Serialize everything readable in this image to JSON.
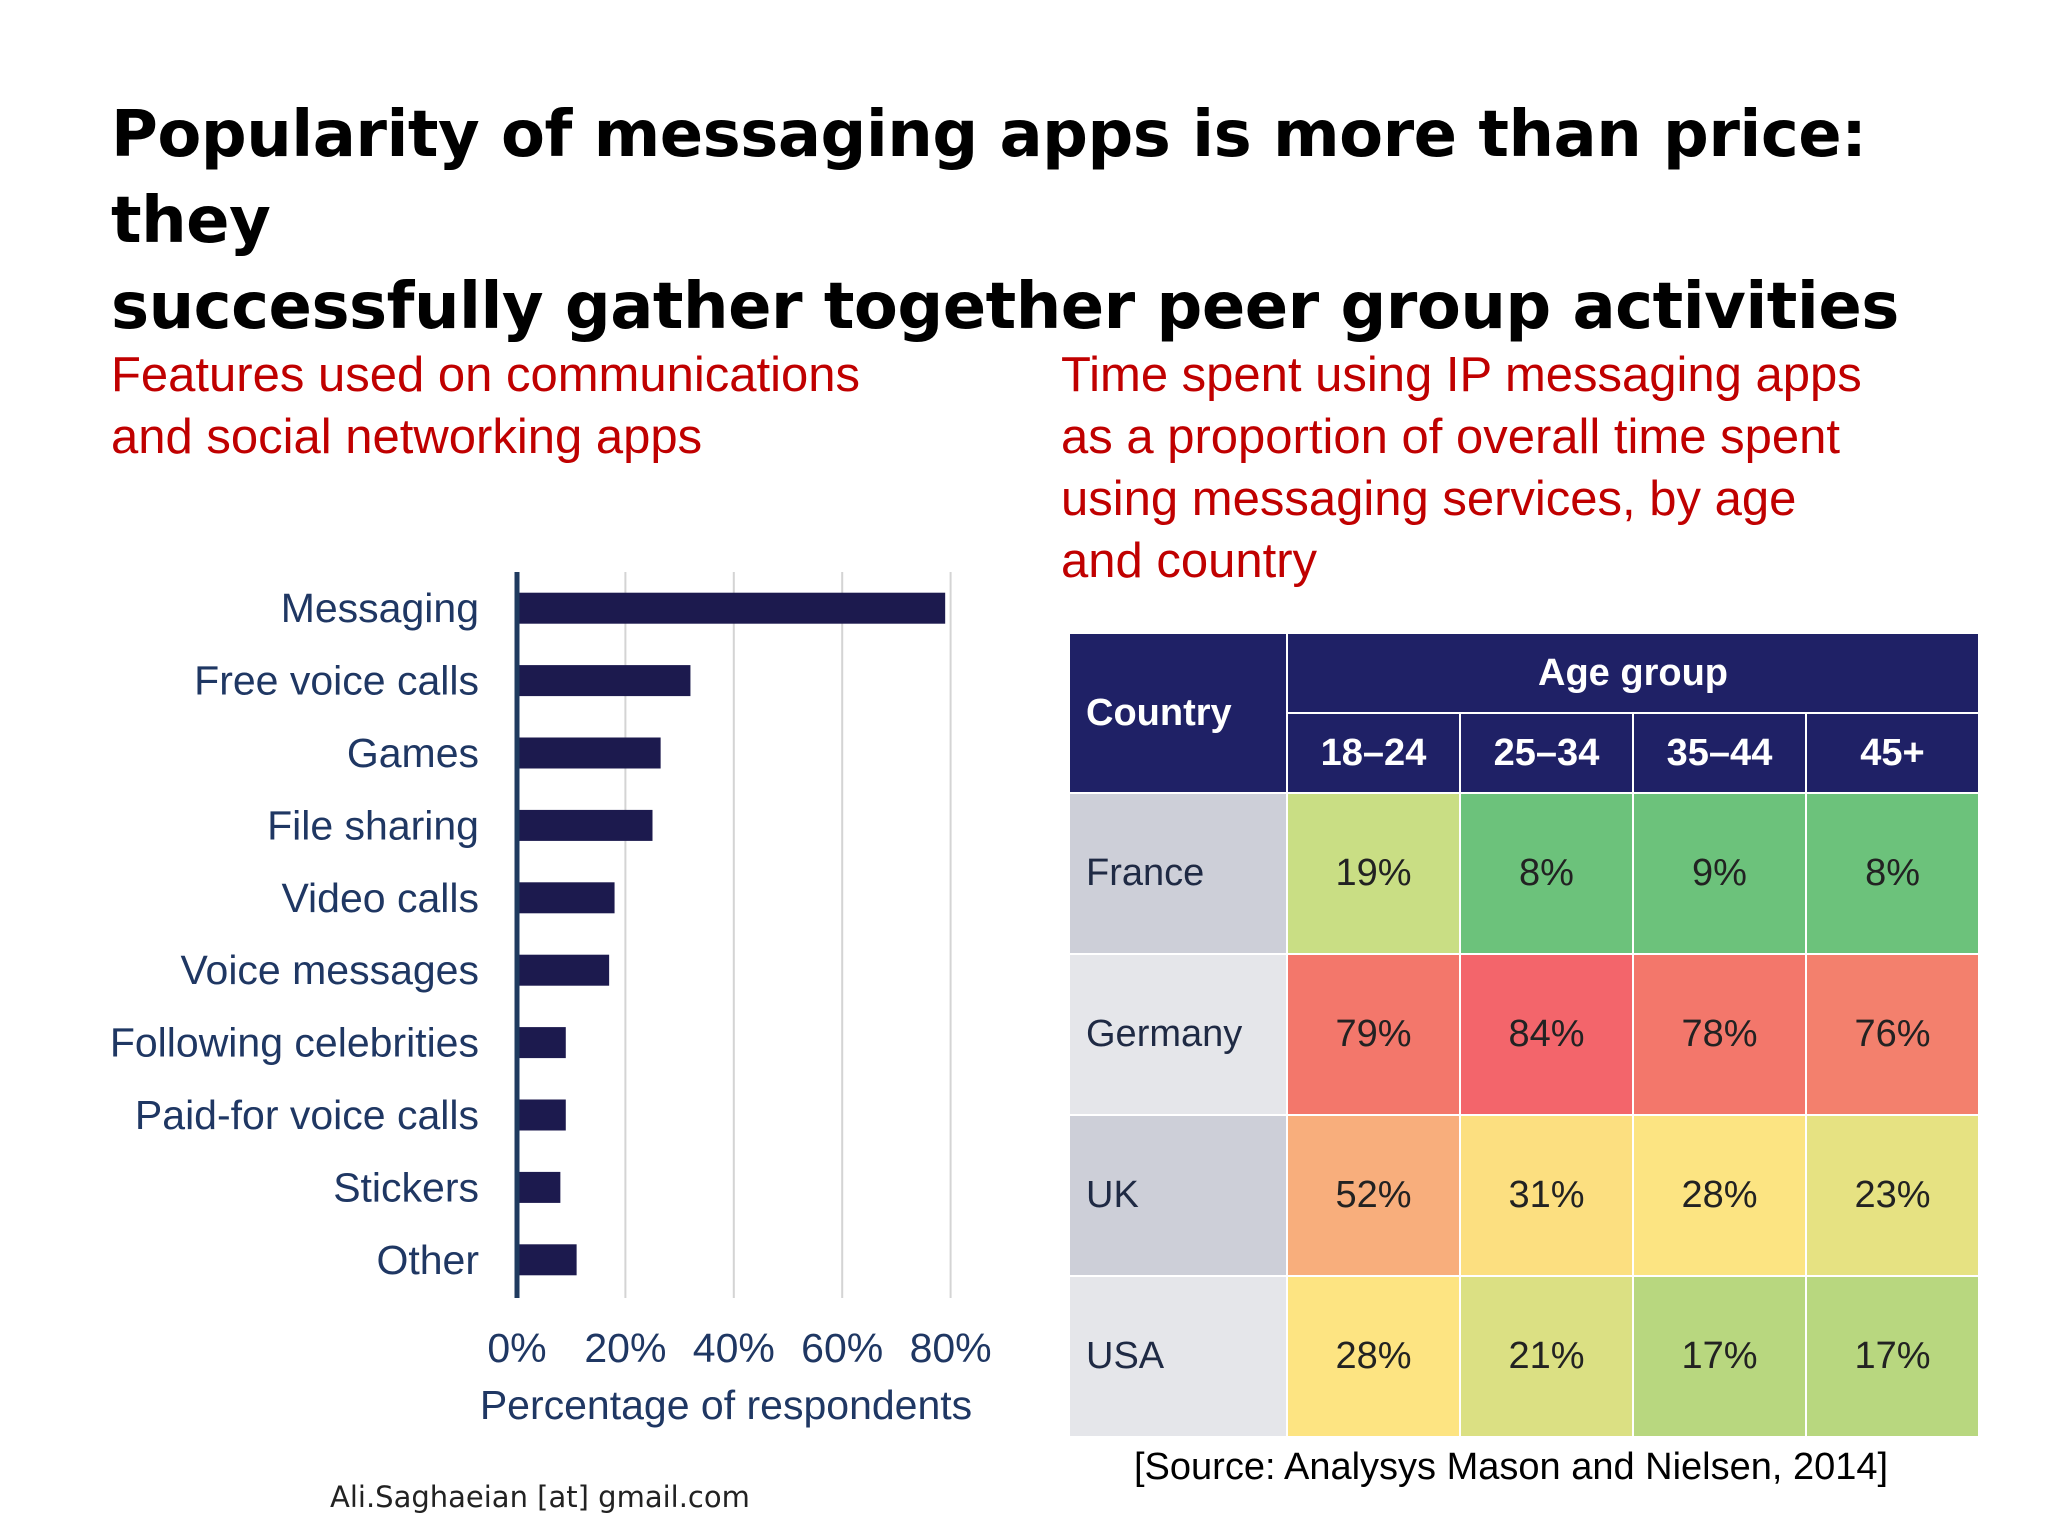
{
  "slide": {
    "title_line1": "Popularity of messaging apps is more than price: they",
    "title_line2": "successfully gather together peer group activities",
    "left_subtitle_line1": "Features used on communications",
    "left_subtitle_line2": "and social networking apps",
    "right_subtitle_line1": "Time spent using IP messaging apps",
    "right_subtitle_line2": "as a proportion of overall time spent",
    "right_subtitle_line3": "using messaging services, by age",
    "right_subtitle_line4": "and country",
    "source": "[Source: Analysys Mason and Nielsen, 2014]",
    "credit": "Ali.Saghaeian [at] gmail.com"
  },
  "colors": {
    "bar": "#1c1a4e",
    "title_red": "#c00000",
    "header_navy": "#1f2166",
    "axis_text": "#1f3763"
  },
  "chart_data": [
    {
      "type": "bar",
      "orientation": "horizontal",
      "categories": [
        "Messaging",
        "Free voice calls",
        "Games",
        "File sharing",
        "Video calls",
        "Voice messages",
        "Following celebrities",
        "Paid-for voice calls",
        "Stickers",
        "Other"
      ],
      "values": [
        79,
        32,
        26.5,
        25,
        18,
        17,
        9,
        9,
        8,
        11
      ],
      "xlabel": "Percentage of respondents",
      "ylabel": "",
      "xlim": [
        0,
        80
      ],
      "xticks": [
        "0%",
        "20%",
        "40%",
        "60%",
        "80%"
      ],
      "grid": "vertical"
    },
    {
      "type": "table",
      "header_country": "Country",
      "header_group": "Age group",
      "columns": [
        "18–24",
        "25–34",
        "35–44",
        "45+"
      ],
      "rows": [
        {
          "country": "France",
          "values": [
            "19%",
            "8%",
            "9%",
            "8%"
          ],
          "colors": [
            "#c9de84",
            "#6cc27b",
            "#6cc27b",
            "#6cc27b"
          ],
          "row_bg": "#cdcfd8"
        },
        {
          "country": "Germany",
          "values": [
            "79%",
            "84%",
            "78%",
            "76%"
          ],
          "colors": [
            "#f3776b",
            "#f3656b",
            "#f3776b",
            "#f3806d"
          ],
          "row_bg": "#e5e6ea"
        },
        {
          "country": "UK",
          "values": [
            "52%",
            "31%",
            "28%",
            "23%"
          ],
          "colors": [
            "#f8ae7c",
            "#fcdf80",
            "#fce482",
            "#e6e282"
          ],
          "row_bg": "#cdcfd8"
        },
        {
          "country": "USA",
          "values": [
            "28%",
            "21%",
            "17%",
            "17%"
          ],
          "colors": [
            "#fde482",
            "#dbe083",
            "#b8d77f",
            "#b8d77f"
          ],
          "row_bg": "#e5e6ea"
        }
      ]
    }
  ]
}
